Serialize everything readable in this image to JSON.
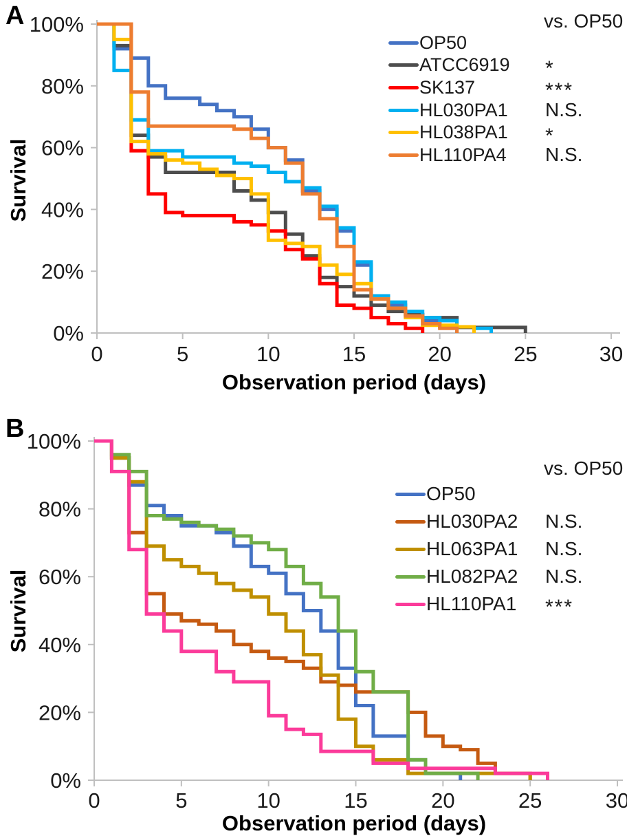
{
  "figure": {
    "background": "#ffffff",
    "axis_color": "#BFBFBF",
    "text_color": "#1a1a1a"
  },
  "chart_data": [
    {
      "panel": "A",
      "type": "line",
      "step": true,
      "xlabel": "Observation period (days)",
      "ylabel": "Survival",
      "legend_header": "vs. OP50",
      "legend_position": "top-right-inside",
      "grid": false,
      "xlim": [
        0,
        30
      ],
      "ylim_percent": [
        0,
        100
      ],
      "x_ticks": [
        0,
        5,
        10,
        15,
        20,
        25,
        30
      ],
      "y_tick_labels": [
        "100%",
        "80%",
        "60%",
        "40%",
        "20%",
        "0%"
      ],
      "series": [
        {
          "name": "OP50",
          "color": "#4472C4",
          "significance": "",
          "points": [
            [
              0,
              100
            ],
            [
              1,
              92
            ],
            [
              2,
              89
            ],
            [
              3,
              80
            ],
            [
              4,
              76
            ],
            [
              6,
              74
            ],
            [
              7,
              72
            ],
            [
              8,
              70
            ],
            [
              9,
              66
            ],
            [
              10,
              60
            ],
            [
              11,
              56
            ],
            [
              12,
              46
            ],
            [
              13,
              40
            ],
            [
              14,
              33
            ],
            [
              15,
              22
            ],
            [
              16,
              12
            ],
            [
              17,
              9
            ],
            [
              18,
              6
            ],
            [
              19,
              4
            ],
            [
              20,
              2
            ],
            [
              21,
              0
            ]
          ]
        },
        {
          "name": "ATCC6919",
          "color": "#4D4D4D",
          "significance": "*",
          "points": [
            [
              0,
              100
            ],
            [
              1,
              93
            ],
            [
              2,
              64
            ],
            [
              3,
              57
            ],
            [
              4,
              52
            ],
            [
              8,
              46
            ],
            [
              9,
              43
            ],
            [
              10,
              39
            ],
            [
              11,
              32
            ],
            [
              12,
              25
            ],
            [
              13,
              18
            ],
            [
              14,
              15
            ],
            [
              15,
              12
            ],
            [
              16,
              9
            ],
            [
              17,
              7
            ],
            [
              18,
              6
            ],
            [
              19,
              5
            ],
            [
              21,
              1.8
            ],
            [
              25,
              0
            ]
          ]
        },
        {
          "name": "SK137",
          "color": "#FF0000",
          "significance": "***",
          "points": [
            [
              0,
              100
            ],
            [
              2,
              59
            ],
            [
              3,
              45
            ],
            [
              4,
              39
            ],
            [
              5,
              38
            ],
            [
              8,
              36
            ],
            [
              9,
              35
            ],
            [
              10,
              33
            ],
            [
              11,
              27
            ],
            [
              12,
              24
            ],
            [
              13,
              16
            ],
            [
              14,
              9
            ],
            [
              15,
              8
            ],
            [
              16,
              5
            ],
            [
              17,
              3
            ],
            [
              18,
              1.5
            ],
            [
              19,
              0
            ]
          ]
        },
        {
          "name": "HL030PA1",
          "color": "#00B0F0",
          "significance": "N.S.",
          "points": [
            [
              0,
              100
            ],
            [
              1,
              85
            ],
            [
              2,
              69
            ],
            [
              3,
              59
            ],
            [
              5,
              57
            ],
            [
              8,
              55
            ],
            [
              9,
              54
            ],
            [
              10,
              52
            ],
            [
              11,
              49
            ],
            [
              12,
              47
            ],
            [
              13,
              41
            ],
            [
              14,
              34
            ],
            [
              15,
              23
            ],
            [
              16,
              12
            ],
            [
              17,
              10
            ],
            [
              18,
              7
            ],
            [
              19,
              5
            ],
            [
              20,
              4
            ],
            [
              21,
              2
            ],
            [
              22,
              1.5
            ],
            [
              23,
              0
            ]
          ]
        },
        {
          "name": "HL038PA1",
          "color": "#FFC000",
          "significance": "*",
          "points": [
            [
              0,
              100
            ],
            [
              1,
              95
            ],
            [
              2,
              62
            ],
            [
              3,
              58
            ],
            [
              4,
              56
            ],
            [
              5,
              55
            ],
            [
              6,
              53
            ],
            [
              7,
              51
            ],
            [
              8,
              50
            ],
            [
              9,
              45
            ],
            [
              10,
              30
            ],
            [
              11,
              29
            ],
            [
              12,
              28
            ],
            [
              13,
              22
            ],
            [
              14,
              19
            ],
            [
              15,
              16
            ],
            [
              16,
              11
            ],
            [
              17,
              8
            ],
            [
              18,
              5
            ],
            [
              19,
              2.5
            ],
            [
              21,
              2
            ],
            [
              22,
              0
            ]
          ]
        },
        {
          "name": "HL110PA4",
          "color": "#ED7D31",
          "significance": "N.S.",
          "points": [
            [
              0,
              100
            ],
            [
              2,
              78
            ],
            [
              3,
              67
            ],
            [
              8,
              66
            ],
            [
              9,
              63
            ],
            [
              10,
              60
            ],
            [
              11,
              55
            ],
            [
              12,
              45
            ],
            [
              13,
              37
            ],
            [
              14,
              28
            ],
            [
              15,
              14
            ],
            [
              16,
              11
            ],
            [
              17,
              8
            ],
            [
              18,
              5.5
            ],
            [
              19,
              3
            ],
            [
              20,
              1.5
            ],
            [
              21,
              0
            ]
          ]
        }
      ]
    },
    {
      "panel": "B",
      "type": "line",
      "step": true,
      "xlabel": "Observation period (days)",
      "ylabel": "Survival",
      "legend_header": "vs. OP50",
      "legend_position": "top-right-inside",
      "grid": false,
      "xlim": [
        0,
        30
      ],
      "ylim_percent": [
        0,
        100
      ],
      "x_ticks": [
        0,
        5,
        10,
        15,
        20,
        25,
        30
      ],
      "y_tick_labels": [
        "100%",
        "80%",
        "60%",
        "40%",
        "20%",
        "0%"
      ],
      "series": [
        {
          "name": "OP50",
          "color": "#4472C4",
          "significance": "",
          "points": [
            [
              0,
              100
            ],
            [
              1,
              95
            ],
            [
              2,
              87
            ],
            [
              3,
              81
            ],
            [
              4,
              78
            ],
            [
              5,
              75
            ],
            [
              7,
              73
            ],
            [
              8,
              69
            ],
            [
              9,
              63
            ],
            [
              10,
              61
            ],
            [
              11,
              55
            ],
            [
              12,
              50
            ],
            [
              13,
              44
            ],
            [
              14,
              33
            ],
            [
              15,
              22
            ],
            [
              16,
              13
            ],
            [
              18,
              6
            ],
            [
              19,
              2
            ],
            [
              21,
              0
            ]
          ]
        },
        {
          "name": "HL030PA2",
          "color": "#C55A11",
          "significance": "N.S.",
          "points": [
            [
              0,
              100
            ],
            [
              1,
              95
            ],
            [
              2,
              73
            ],
            [
              3,
              55
            ],
            [
              4,
              49
            ],
            [
              5,
              47
            ],
            [
              6,
              46
            ],
            [
              7,
              44
            ],
            [
              8,
              40
            ],
            [
              9,
              38
            ],
            [
              10,
              36
            ],
            [
              11,
              35
            ],
            [
              12,
              33
            ],
            [
              13,
              29
            ],
            [
              14,
              28
            ],
            [
              15,
              26
            ],
            [
              18,
              20
            ],
            [
              19,
              13
            ],
            [
              20,
              10
            ],
            [
              21,
              9
            ],
            [
              22,
              5
            ],
            [
              23,
              2
            ],
            [
              25,
              0
            ]
          ]
        },
        {
          "name": "HL063PA1",
          "color": "#BF8F00",
          "significance": "N.S.",
          "points": [
            [
              0,
              100
            ],
            [
              1,
              95
            ],
            [
              2,
              88
            ],
            [
              3,
              69
            ],
            [
              4,
              65
            ],
            [
              5,
              63
            ],
            [
              6,
              61
            ],
            [
              7,
              58
            ],
            [
              8,
              56
            ],
            [
              9,
              54
            ],
            [
              10,
              49
            ],
            [
              11,
              44
            ],
            [
              12,
              37
            ],
            [
              13,
              31
            ],
            [
              14,
              18
            ],
            [
              15,
              10
            ],
            [
              16,
              6
            ],
            [
              18,
              2
            ],
            [
              25,
              0
            ]
          ]
        },
        {
          "name": "HL082PA2",
          "color": "#70AD47",
          "significance": "N.S.",
          "points": [
            [
              0,
              100
            ],
            [
              1,
              96
            ],
            [
              2,
              91
            ],
            [
              3,
              78
            ],
            [
              4,
              77
            ],
            [
              5,
              76
            ],
            [
              6,
              75
            ],
            [
              7,
              74
            ],
            [
              8,
              72
            ],
            [
              9,
              70
            ],
            [
              10,
              68
            ],
            [
              11,
              63
            ],
            [
              12,
              58
            ],
            [
              13,
              54
            ],
            [
              14,
              44
            ],
            [
              15,
              32
            ],
            [
              16,
              26
            ],
            [
              18,
              6
            ],
            [
              19,
              2
            ],
            [
              22,
              0
            ]
          ]
        },
        {
          "name": "HL110PA1",
          "color": "#FB3B9A",
          "significance": "***",
          "points": [
            [
              0,
              100
            ],
            [
              1,
              91
            ],
            [
              2,
              68
            ],
            [
              3,
              49
            ],
            [
              4,
              44
            ],
            [
              5,
              38
            ],
            [
              7,
              32
            ],
            [
              8,
              29
            ],
            [
              10,
              19
            ],
            [
              11,
              15
            ],
            [
              12,
              13.5
            ],
            [
              13,
              8.5
            ],
            [
              16,
              5
            ],
            [
              18,
              3.5
            ],
            [
              23,
              2
            ],
            [
              26,
              0
            ]
          ]
        }
      ]
    }
  ]
}
